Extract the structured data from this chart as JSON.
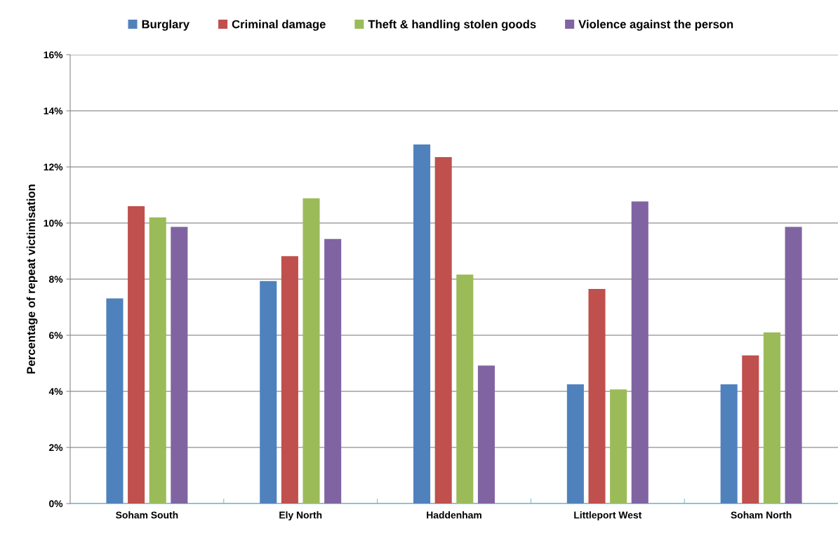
{
  "chart_data": {
    "type": "bar",
    "ylabel": "Percentage of repeat victimisation",
    "categories": [
      "Soham South",
      "Ely North",
      "Haddenham",
      "Littleport West",
      "Soham North"
    ],
    "series": [
      {
        "name": "Burglary",
        "color": "#4f81bd",
        "values": [
          7.31,
          7.93,
          12.8,
          4.25,
          4.25
        ]
      },
      {
        "name": "Criminal damage",
        "color": "#c0504d",
        "values": [
          10.6,
          8.82,
          12.35,
          7.65,
          5.28
        ]
      },
      {
        "name": "Theft & handling stolen goods",
        "color": "#9bbb59",
        "values": [
          10.2,
          10.88,
          8.16,
          4.07,
          6.1
        ]
      },
      {
        "name": "Violence against the person",
        "color": "#8064a2",
        "values": [
          9.86,
          9.43,
          4.92,
          10.77,
          9.86
        ]
      }
    ],
    "ylim": [
      0,
      16
    ],
    "yticks": [
      {
        "value": 0,
        "label": "0%"
      },
      {
        "value": 2,
        "label": "2%"
      },
      {
        "value": 4,
        "label": "4%"
      },
      {
        "value": 6,
        "label": "6%"
      },
      {
        "value": 8,
        "label": "8%"
      },
      {
        "value": 10,
        "label": "10%"
      },
      {
        "value": 12,
        "label": "12%"
      },
      {
        "value": 14,
        "label": "14%"
      },
      {
        "value": 16,
        "label": "16%"
      }
    ],
    "grid": "y",
    "legend": "top"
  }
}
